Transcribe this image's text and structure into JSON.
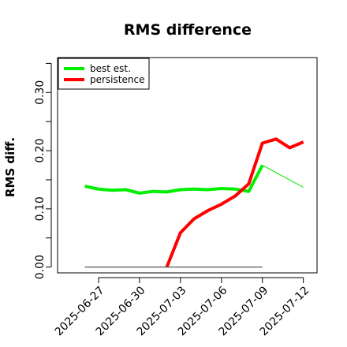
{
  "chart_data": {
    "type": "line",
    "title": "RMS difference",
    "xlabel": "",
    "ylabel": "RMS diff.",
    "x_tick_labels": [
      "2025-06-27",
      "2025-06-30",
      "2025-07-03",
      "2025-07-06",
      "2025-07-09",
      "2025-07-12"
    ],
    "y_tick_labels": [
      "0.00",
      "0.10",
      "0.20",
      "0.30"
    ],
    "y_tick_values": [
      0.0,
      0.1,
      0.2,
      0.3
    ],
    "y_minor_ticks": [
      0.05,
      0.15,
      0.25,
      0.35
    ],
    "xlim": [
      "2025-06-24",
      "2025-07-13"
    ],
    "ylim": [
      -0.01,
      0.36
    ],
    "grid": false,
    "legend_position": "top-left",
    "series": [
      {
        "name": "best est.",
        "color": "#00ee00",
        "points": [
          [
            "2025-06-26",
            0.139
          ],
          [
            "2025-06-27",
            0.134
          ],
          [
            "2025-06-28",
            0.132
          ],
          [
            "2025-06-29",
            0.133
          ],
          [
            "2025-06-30",
            0.127
          ],
          [
            "2025-07-01",
            0.13
          ],
          [
            "2025-07-02",
            0.129
          ],
          [
            "2025-07-03",
            0.133
          ],
          [
            "2025-07-04",
            0.134
          ],
          [
            "2025-07-05",
            0.133
          ],
          [
            "2025-07-06",
            0.135
          ],
          [
            "2025-07-07",
            0.134
          ],
          [
            "2025-07-08",
            0.13
          ],
          [
            "2025-07-09",
            0.175
          ]
        ],
        "extension": [
          [
            "2025-07-09",
            0.175
          ],
          [
            "2025-07-12",
            0.137
          ]
        ]
      },
      {
        "name": "persistence",
        "color": "#ff0000",
        "points": [
          [
            "2025-07-02",
            0.0
          ],
          [
            "2025-07-03",
            0.059
          ],
          [
            "2025-07-04",
            0.083
          ],
          [
            "2025-07-05",
            0.097
          ],
          [
            "2025-07-06",
            0.108
          ],
          [
            "2025-07-07",
            0.122
          ],
          [
            "2025-07-08",
            0.143
          ],
          [
            "2025-07-09",
            0.213
          ],
          [
            "2025-07-10",
            0.22
          ],
          [
            "2025-07-11",
            0.205
          ],
          [
            "2025-07-12",
            0.215
          ]
        ]
      },
      {
        "name": "",
        "color": "#555555",
        "points": [
          [
            "2025-06-26",
            0.0
          ],
          [
            "2025-07-09",
            0.0
          ]
        ]
      }
    ]
  }
}
